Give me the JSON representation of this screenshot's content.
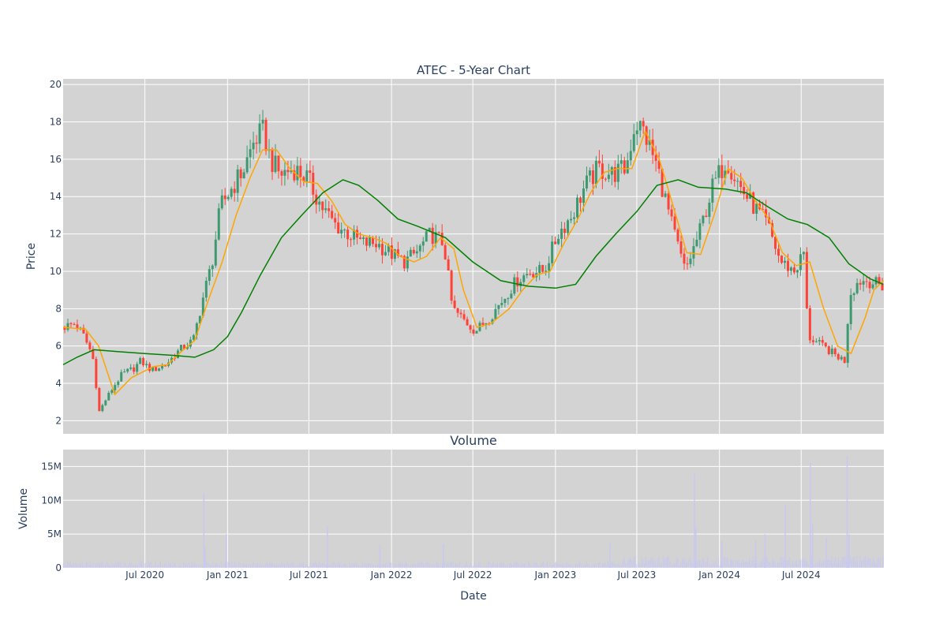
{
  "chart_data": [
    {
      "type": "candlestick",
      "title": "ATEC - 5-Year Chart",
      "ylabel": "Price",
      "ylim": [
        1.3,
        20.3
      ],
      "yticks": [
        2,
        4,
        6,
        8,
        10,
        12,
        14,
        16,
        18,
        20
      ],
      "x_range": [
        "2020-01-01",
        "2025-01-01"
      ],
      "grid": true,
      "colors": {
        "up": "#3d9970",
        "down": "#ff4136",
        "ma_short": "#ffa500",
        "ma_long": "#008000",
        "plot_bg": "#d3d3d3"
      },
      "close_points": [
        [
          "2020-01-01",
          7.0
        ],
        [
          "2020-02-01",
          7.2
        ],
        [
          "2020-02-20",
          6.5
        ],
        [
          "2020-03-10",
          5.5
        ],
        [
          "2020-03-25",
          2.5
        ],
        [
          "2020-04-10",
          3.2
        ],
        [
          "2020-04-25",
          3.8
        ],
        [
          "2020-05-15",
          4.5
        ],
        [
          "2020-06-10",
          4.8
        ],
        [
          "2020-06-25",
          5.2
        ],
        [
          "2020-07-20",
          4.7
        ],
        [
          "2020-08-20",
          5.0
        ],
        [
          "2020-09-20",
          5.8
        ],
        [
          "2020-10-20",
          6.3
        ],
        [
          "2020-11-10",
          8.5
        ],
        [
          "2020-12-01",
          10.5
        ],
        [
          "2020-12-20",
          13.5
        ],
        [
          "2021-01-15",
          14.5
        ],
        [
          "2021-02-10",
          15.5
        ],
        [
          "2021-03-05",
          17.0
        ],
        [
          "2021-03-25",
          17.5
        ],
        [
          "2021-04-10",
          16.0
        ],
        [
          "2021-05-01",
          15.2
        ],
        [
          "2021-06-01",
          15.5
        ],
        [
          "2021-07-01",
          15.0
        ],
        [
          "2021-08-01",
          13.5
        ],
        [
          "2021-09-01",
          12.5
        ],
        [
          "2021-10-01",
          12.0
        ],
        [
          "2021-11-01",
          11.5
        ],
        [
          "2021-12-01",
          11.5
        ],
        [
          "2022-01-01",
          11.0
        ],
        [
          "2022-02-01",
          10.5
        ],
        [
          "2022-03-01",
          11.0
        ],
        [
          "2022-04-01",
          12.0
        ],
        [
          "2022-05-01",
          11.5
        ],
        [
          "2022-05-20",
          8.0
        ],
        [
          "2022-06-10",
          7.5
        ],
        [
          "2022-07-10",
          6.8
        ],
        [
          "2022-08-10",
          7.5
        ],
        [
          "2022-09-10",
          8.5
        ],
        [
          "2022-10-10",
          9.5
        ],
        [
          "2022-11-10",
          10.0
        ],
        [
          "2022-12-10",
          10.0
        ],
        [
          "2023-01-10",
          12.0
        ],
        [
          "2023-02-10",
          13.0
        ],
        [
          "2023-03-10",
          14.5
        ],
        [
          "2023-04-10",
          15.5
        ],
        [
          "2023-05-10",
          15.2
        ],
        [
          "2023-06-10",
          15.5
        ],
        [
          "2023-07-01",
          18.0
        ],
        [
          "2023-07-20",
          17.5
        ],
        [
          "2023-08-20",
          15.5
        ],
        [
          "2023-09-20",
          12.5
        ],
        [
          "2023-10-20",
          10.0
        ],
        [
          "2023-11-20",
          12.0
        ],
        [
          "2023-12-20",
          14.5
        ],
        [
          "2024-01-20",
          16.0
        ],
        [
          "2024-02-20",
          14.5
        ],
        [
          "2024-03-20",
          13.5
        ],
        [
          "2024-04-20",
          12.5
        ],
        [
          "2024-05-20",
          10.5
        ],
        [
          "2024-06-20",
          10.0
        ],
        [
          "2024-07-10",
          11.0
        ],
        [
          "2024-07-20",
          6.5
        ],
        [
          "2024-08-20",
          6.0
        ],
        [
          "2024-09-20",
          5.5
        ],
        [
          "2024-10-10",
          5.2
        ],
        [
          "2024-10-20",
          8.8
        ],
        [
          "2024-11-10",
          9.5
        ],
        [
          "2024-12-01",
          9.5
        ],
        [
          "2024-12-31",
          9.2
        ]
      ],
      "ma_short_points": [
        [
          "2020-01-01",
          7.0
        ],
        [
          "2020-02-20",
          6.9
        ],
        [
          "2020-03-20",
          6.0
        ],
        [
          "2020-04-25",
          3.4
        ],
        [
          "2020-06-01",
          4.3
        ],
        [
          "2020-07-20",
          4.9
        ],
        [
          "2020-08-20",
          5.0
        ],
        [
          "2020-09-20",
          5.7
        ],
        [
          "2020-10-20",
          6.3
        ],
        [
          "2020-11-20",
          8.5
        ],
        [
          "2020-12-20",
          10.5
        ],
        [
          "2021-01-20",
          13.0
        ],
        [
          "2021-02-20",
          15.0
        ],
        [
          "2021-03-20",
          16.5
        ],
        [
          "2021-04-20",
          16.5
        ],
        [
          "2021-05-20",
          15.5
        ],
        [
          "2021-06-20",
          14.8
        ],
        [
          "2021-07-20",
          14.7
        ],
        [
          "2021-08-20",
          13.8
        ],
        [
          "2021-09-20",
          12.5
        ],
        [
          "2021-10-20",
          12.0
        ],
        [
          "2021-11-20",
          11.8
        ],
        [
          "2021-12-20",
          11.5
        ],
        [
          "2022-01-20",
          10.8
        ],
        [
          "2022-02-20",
          10.5
        ],
        [
          "2022-03-20",
          10.8
        ],
        [
          "2022-04-20",
          11.8
        ],
        [
          "2022-05-20",
          11.2
        ],
        [
          "2022-06-10",
          9.0
        ],
        [
          "2022-07-10",
          7.0
        ],
        [
          "2022-08-10",
          7.2
        ],
        [
          "2022-09-20",
          8.0
        ],
        [
          "2022-10-20",
          9.0
        ],
        [
          "2022-11-20",
          9.8
        ],
        [
          "2022-12-20",
          10.0
        ],
        [
          "2023-01-20",
          11.5
        ],
        [
          "2023-02-20",
          12.8
        ],
        [
          "2023-03-20",
          14.2
        ],
        [
          "2023-04-20",
          15.3
        ],
        [
          "2023-05-20",
          15.5
        ],
        [
          "2023-06-20",
          15.5
        ],
        [
          "2023-07-20",
          17.5
        ],
        [
          "2023-08-20",
          16.0
        ],
        [
          "2023-09-20",
          13.5
        ],
        [
          "2023-10-20",
          11.0
        ],
        [
          "2023-11-20",
          10.9
        ],
        [
          "2023-12-20",
          13.0
        ],
        [
          "2024-01-20",
          15.5
        ],
        [
          "2024-02-20",
          15.0
        ],
        [
          "2024-03-20",
          13.8
        ],
        [
          "2024-04-20",
          12.8
        ],
        [
          "2024-05-20",
          11.0
        ],
        [
          "2024-06-20",
          10.3
        ],
        [
          "2024-07-20",
          10.5
        ],
        [
          "2024-08-20",
          8.0
        ],
        [
          "2024-09-20",
          6.0
        ],
        [
          "2024-10-20",
          5.6
        ],
        [
          "2024-11-20",
          7.5
        ],
        [
          "2024-12-10",
          9.0
        ],
        [
          "2024-12-31",
          9.5
        ]
      ],
      "ma_long_points": [
        [
          "2020-01-01",
          5.0
        ],
        [
          "2020-02-01",
          5.4
        ],
        [
          "2020-03-10",
          5.8
        ],
        [
          "2020-05-01",
          5.7
        ],
        [
          "2020-07-01",
          5.6
        ],
        [
          "2020-09-01",
          5.5
        ],
        [
          "2020-10-20",
          5.4
        ],
        [
          "2020-12-01",
          5.8
        ],
        [
          "2021-01-01",
          6.5
        ],
        [
          "2021-02-01",
          7.8
        ],
        [
          "2021-03-15",
          9.8
        ],
        [
          "2021-05-01",
          11.8
        ],
        [
          "2021-06-15",
          13.0
        ],
        [
          "2021-08-01",
          14.2
        ],
        [
          "2021-09-15",
          14.9
        ],
        [
          "2021-10-20",
          14.6
        ],
        [
          "2021-12-01",
          13.8
        ],
        [
          "2022-01-15",
          12.8
        ],
        [
          "2022-03-01",
          12.4
        ],
        [
          "2022-05-01",
          11.8
        ],
        [
          "2022-07-01",
          10.5
        ],
        [
          "2022-09-01",
          9.5
        ],
        [
          "2022-11-01",
          9.2
        ],
        [
          "2023-01-01",
          9.1
        ],
        [
          "2023-02-15",
          9.3
        ],
        [
          "2023-04-01",
          10.8
        ],
        [
          "2023-05-15",
          12.0
        ],
        [
          "2023-07-01",
          13.2
        ],
        [
          "2023-08-15",
          14.6
        ],
        [
          "2023-10-01",
          14.9
        ],
        [
          "2023-11-15",
          14.5
        ],
        [
          "2024-01-15",
          14.4
        ],
        [
          "2024-03-01",
          14.2
        ],
        [
          "2024-04-15",
          13.5
        ],
        [
          "2024-06-01",
          12.8
        ],
        [
          "2024-07-15",
          12.5
        ],
        [
          "2024-09-01",
          11.8
        ],
        [
          "2024-10-15",
          10.4
        ],
        [
          "2024-12-01",
          9.6
        ],
        [
          "2024-12-31",
          9.3
        ]
      ]
    },
    {
      "type": "bar",
      "title": "Volume",
      "ylabel": "Volume",
      "xlabel": "Date",
      "ylim": [
        0,
        17500000
      ],
      "yticks": [
        0,
        5000000,
        10000000,
        15000000
      ],
      "ytick_labels": [
        "0",
        "5M",
        "10M",
        "15M"
      ],
      "xticks": [
        "2020-07-01",
        "2021-01-01",
        "2021-07-01",
        "2022-01-01",
        "2022-07-01",
        "2023-01-01",
        "2023-07-01",
        "2024-01-01",
        "2024-07-01"
      ],
      "xtick_labels": [
        "Jul 2020",
        "Jan 2021",
        "Jul 2021",
        "Jan 2022",
        "Jul 2022",
        "Jan 2023",
        "Jul 2023",
        "Jan 2024",
        "Jul 2024"
      ],
      "bar_color": "#c8c8f0",
      "baseline_volume": 500000,
      "spikes": [
        [
          "2020-11-08",
          11000000
        ],
        [
          "2020-11-10",
          3000000
        ],
        [
          "2020-12-28",
          5000000
        ],
        [
          "2021-08-10",
          6200000
        ],
        [
          "2021-12-05",
          3400000
        ],
        [
          "2022-04-25",
          3500000
        ],
        [
          "2023-05-01",
          3600000
        ],
        [
          "2023-11-05",
          13800000
        ],
        [
          "2023-11-08",
          6000000
        ],
        [
          "2024-01-05",
          4000000
        ],
        [
          "2024-03-20",
          4000000
        ],
        [
          "2024-04-10",
          5000000
        ],
        [
          "2024-05-25",
          9300000
        ],
        [
          "2024-07-20",
          15500000
        ],
        [
          "2024-07-25",
          6500000
        ],
        [
          "2024-08-25",
          4500000
        ],
        [
          "2024-10-10",
          16500000
        ],
        [
          "2024-10-14",
          5000000
        ]
      ]
    }
  ]
}
